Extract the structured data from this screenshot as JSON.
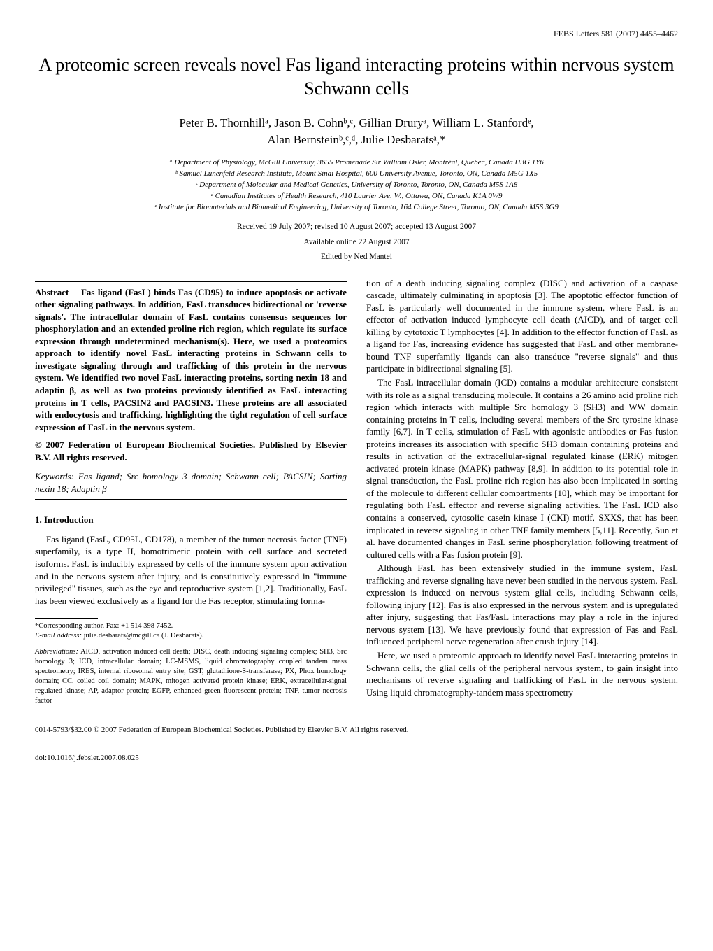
{
  "header": {
    "journal_ref": "FEBS Letters 581 (2007) 4455–4462"
  },
  "title": "A proteomic screen reveals novel Fas ligand interacting proteins within nervous system Schwann cells",
  "authors_line1": "Peter B. Thornhillᵃ, Jason B. Cohnᵇ,ᶜ, Gillian Druryᵃ, William L. Stanfordᵉ,",
  "authors_line2": "Alan Bernsteinᵇ,ᶜ,ᵈ, Julie Desbaratsᵃ,*",
  "affiliations": {
    "a": "ᵃ Department of Physiology, McGill University, 3655 Promenade Sir William Osler, Montréal, Québec, Canada H3G 1Y6",
    "b": "ᵇ Samuel Lunenfeld Research Institute, Mount Sinai Hospital, 600 University Avenue, Toronto, ON, Canada M5G 1X5",
    "c": "ᶜ Department of Molecular and Medical Genetics, University of Toronto, Toronto, ON, Canada M5S 1A8",
    "d": "ᵈ Canadian Institutes of Health Research, 410 Laurier Ave. W., Ottawa, ON, Canada K1A 0W9",
    "e": "ᵉ Institute for Biomaterials and Biomedical Engineering, University of Toronto, 164 College Street, Toronto, ON, Canada M5S 3G9"
  },
  "dates": "Received 19 July 2007; revised 10 August 2007; accepted 13 August 2007",
  "available": "Available online 22 August 2007",
  "editor": "Edited by Ned Mantei",
  "abstract": {
    "label": "Abstract",
    "text": "Fas ligand (FasL) binds Fas (CD95) to induce apoptosis or activate other signaling pathways. In addition, FasL transduces bidirectional or 'reverse signals'. The intracellular domain of FasL contains consensus sequences for phosphorylation and an extended proline rich region, which regulate its surface expression through undetermined mechanism(s). Here, we used a proteomics approach to identify novel FasL interacting proteins in Schwann cells to investigate signaling through and trafficking of this protein in the nervous system. We identified two novel FasL interacting proteins, sorting nexin 18 and adaptin β, as well as two proteins previously identified as FasL interacting proteins in T cells, PACSIN2 and PACSIN3. These proteins are all associated with endocytosis and trafficking, highlighting the tight regulation of cell surface expression of FasL in the nervous system.",
    "copyright": "© 2007 Federation of European Biochemical Societies. Published by Elsevier B.V. All rights reserved."
  },
  "keywords": {
    "label": "Keywords:",
    "text": "Fas ligand; Src homology 3 domain; Schwann cell; PACSIN; Sorting nexin 18; Adaptin β"
  },
  "section1": {
    "heading": "1. Introduction",
    "p1": "Fas ligand (FasL, CD95L, CD178), a member of the tumor necrosis factor (TNF) superfamily, is a type II, homotrimeric protein with cell surface and secreted isoforms. FasL is inducibly expressed by cells of the immune system upon activation and in the nervous system after injury, and is constitutively expressed in \"immune privileged\" tissues, such as the eye and reproductive system [1,2]. Traditionally, FasL has been viewed exclusively as a ligand for the Fas receptor, stimulating forma-"
  },
  "footnotes": {
    "corresponding": "*Corresponding author. Fax: +1 514 398 7452.",
    "email_label": "E-mail address:",
    "email": "julie.desbarats@mcgill.ca (J. Desbarats).",
    "abbrev_label": "Abbreviations:",
    "abbrev": "AICD, activation induced cell death; DISC, death inducing signaling complex; SH3, Src homology 3; ICD, intracellular domain; LC-MSMS, liquid chromatography coupled tandem mass spectrometry; IRES, internal ribosomal entry site; GST, glutathione-S-transferase; PX, Phox homology domain; CC, coiled coil domain; MAPK, mitogen activated protein kinase; ERK, extracellular-signal regulated kinase; AP, adaptor protein; EGFP, enhanced green fluorescent protein; TNF, tumor necrosis factor"
  },
  "rightcol": {
    "p1": "tion of a death inducing signaling complex (DISC) and activation of a caspase cascade, ultimately culminating in apoptosis [3]. The apoptotic effector function of FasL is particularly well documented in the immune system, where FasL is an effector of activation induced lymphocyte cell death (AICD), and of target cell killing by cytotoxic T lymphocytes [4]. In addition to the effector function of FasL as a ligand for Fas, increasing evidence has suggested that FasL and other membrane-bound TNF superfamily ligands can also transduce \"reverse signals\" and thus participate in bidirectional signaling [5].",
    "p2": "The FasL intracellular domain (ICD) contains a modular architecture consistent with its role as a signal transducing molecule. It contains a 26 amino acid proline rich region which interacts with multiple Src homology 3 (SH3) and WW domain containing proteins in T cells, including several members of the Src tyrosine kinase family [6,7]. In T cells, stimulation of FasL with agonistic antibodies or Fas fusion proteins increases its association with specific SH3 domain containing proteins and results in activation of the extracellular-signal regulated kinase (ERK) mitogen activated protein kinase (MAPK) pathway [8,9]. In addition to its potential role in signal transduction, the FasL proline rich region has also been implicated in sorting of the molecule to different cellular compartments [10], which may be important for regulating both FasL effector and reverse signaling activities. The FasL ICD also contains a conserved, cytosolic casein kinase I (CKI) motif, SXXS, that has been implicated in reverse signaling in other TNF family members [5,11]. Recently, Sun et al. have documented changes in FasL serine phosphorylation following treatment of cultured cells with a Fas fusion protein [9].",
    "p3": "Although FasL has been extensively studied in the immune system, FasL trafficking and reverse signaling have never been studied in the nervous system. FasL expression is induced on nervous system glial cells, including Schwann cells, following injury [12]. Fas is also expressed in the nervous system and is upregulated after injury, suggesting that Fas/FasL interactions may play a role in the injured nervous system [13]. We have previously found that expression of Fas and FasL influenced peripheral nerve regeneration after crush injury [14].",
    "p4": "Here, we used a proteomic approach to identify novel FasL interacting proteins in Schwann cells, the glial cells of the peripheral nervous system, to gain insight into mechanisms of reverse signaling and trafficking of FasL in the nervous system. Using liquid chromatography-tandem mass spectrometry"
  },
  "bottom": {
    "line1": "0014-5793/$32.00 © 2007 Federation of European Biochemical Societies. Published by Elsevier B.V. All rights reserved.",
    "line2": "doi:10.1016/j.febslet.2007.08.025"
  }
}
